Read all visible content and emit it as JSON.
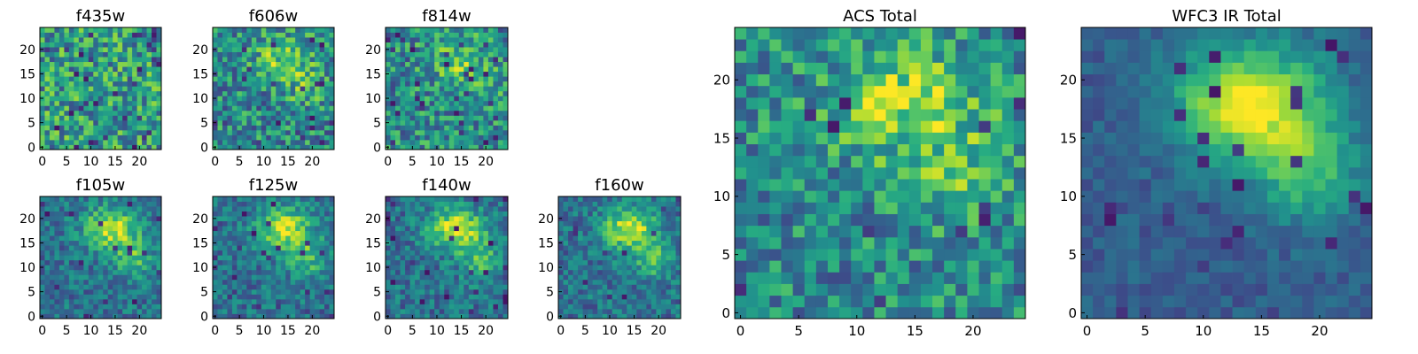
{
  "chart_data": [
    {
      "type": "heatmap",
      "title": "f435w",
      "colormap": "viridis",
      "grid": false,
      "pixels": 25,
      "features": "noise",
      "x_ticks": [
        "0",
        "5",
        "10",
        "15",
        "20"
      ],
      "y_ticks": [
        "0",
        "5",
        "10",
        "15",
        "20"
      ],
      "xlim": [
        -0.5,
        24.5
      ],
      "ylim": [
        -0.5,
        24.5
      ]
    },
    {
      "type": "heatmap",
      "title": "f606w",
      "colormap": "viridis",
      "grid": false,
      "pixels": 25,
      "features": "faint upper blob",
      "x_ticks": [
        "0",
        "5",
        "10",
        "15",
        "20"
      ],
      "y_ticks": [
        "0",
        "5",
        "10",
        "15",
        "20"
      ],
      "xlim": [
        -0.5,
        24.5
      ],
      "ylim": [
        -0.5,
        24.5
      ]
    },
    {
      "type": "heatmap",
      "title": "f814w",
      "colormap": "viridis",
      "grid": false,
      "pixels": 25,
      "features": "faint upper blob",
      "x_ticks": [
        "0",
        "5",
        "10",
        "15",
        "20"
      ],
      "y_ticks": [
        "0",
        "5",
        "10",
        "15",
        "20"
      ],
      "xlim": [
        -0.5,
        24.5
      ],
      "ylim": [
        -0.5,
        24.5
      ]
    },
    {
      "type": "heatmap",
      "title": "f105w",
      "colormap": "viridis",
      "grid": false,
      "pixels": 25,
      "features": "bright upper blob",
      "x_ticks": [
        "0",
        "5",
        "10",
        "15",
        "20"
      ],
      "y_ticks": [
        "0",
        "5",
        "10",
        "15",
        "20"
      ],
      "xlim": [
        -0.5,
        24.5
      ],
      "ylim": [
        -0.5,
        24.5
      ]
    },
    {
      "type": "heatmap",
      "title": "f125w",
      "colormap": "viridis",
      "grid": false,
      "pixels": 25,
      "features": "bright upper blob",
      "x_ticks": [
        "0",
        "5",
        "10",
        "15",
        "20"
      ],
      "y_ticks": [
        "0",
        "5",
        "10",
        "15",
        "20"
      ],
      "xlim": [
        -0.5,
        24.5
      ],
      "ylim": [
        -0.5,
        24.5
      ]
    },
    {
      "type": "heatmap",
      "title": "f140w",
      "colormap": "viridis",
      "grid": false,
      "pixels": 25,
      "features": "bright upper blob",
      "x_ticks": [
        "0",
        "5",
        "10",
        "15",
        "20"
      ],
      "y_ticks": [
        "0",
        "5",
        "10",
        "15",
        "20"
      ],
      "xlim": [
        -0.5,
        24.5
      ],
      "ylim": [
        -0.5,
        24.5
      ]
    },
    {
      "type": "heatmap",
      "title": "f160w",
      "colormap": "viridis",
      "grid": false,
      "pixels": 25,
      "features": "bright upper blob",
      "x_ticks": [
        "0",
        "5",
        "10",
        "15",
        "20"
      ],
      "y_ticks": [
        "0",
        "5",
        "10",
        "15",
        "20"
      ],
      "xlim": [
        -0.5,
        24.5
      ],
      "ylim": [
        -0.5,
        24.5
      ]
    },
    {
      "type": "heatmap",
      "title": "ACS Total",
      "colormap": "viridis",
      "grid": false,
      "pixels": 25,
      "features": "noisy upper blob",
      "x_ticks": [
        "0",
        "5",
        "10",
        "15",
        "20"
      ],
      "y_ticks": [
        "0",
        "5",
        "10",
        "15",
        "20"
      ],
      "xlim": [
        -0.5,
        24.5
      ],
      "ylim": [
        -0.5,
        24.5
      ]
    },
    {
      "type": "heatmap",
      "title": "WFC3 IR Total",
      "colormap": "viridis",
      "grid": false,
      "pixels": 25,
      "features": "smooth bright upper blob",
      "x_ticks": [
        "0",
        "5",
        "10",
        "15",
        "20"
      ],
      "y_ticks": [
        "0",
        "5",
        "10",
        "15",
        "20"
      ],
      "xlim": [
        -0.5,
        24.5
      ],
      "ylim": [
        -0.5,
        24.5
      ]
    }
  ]
}
